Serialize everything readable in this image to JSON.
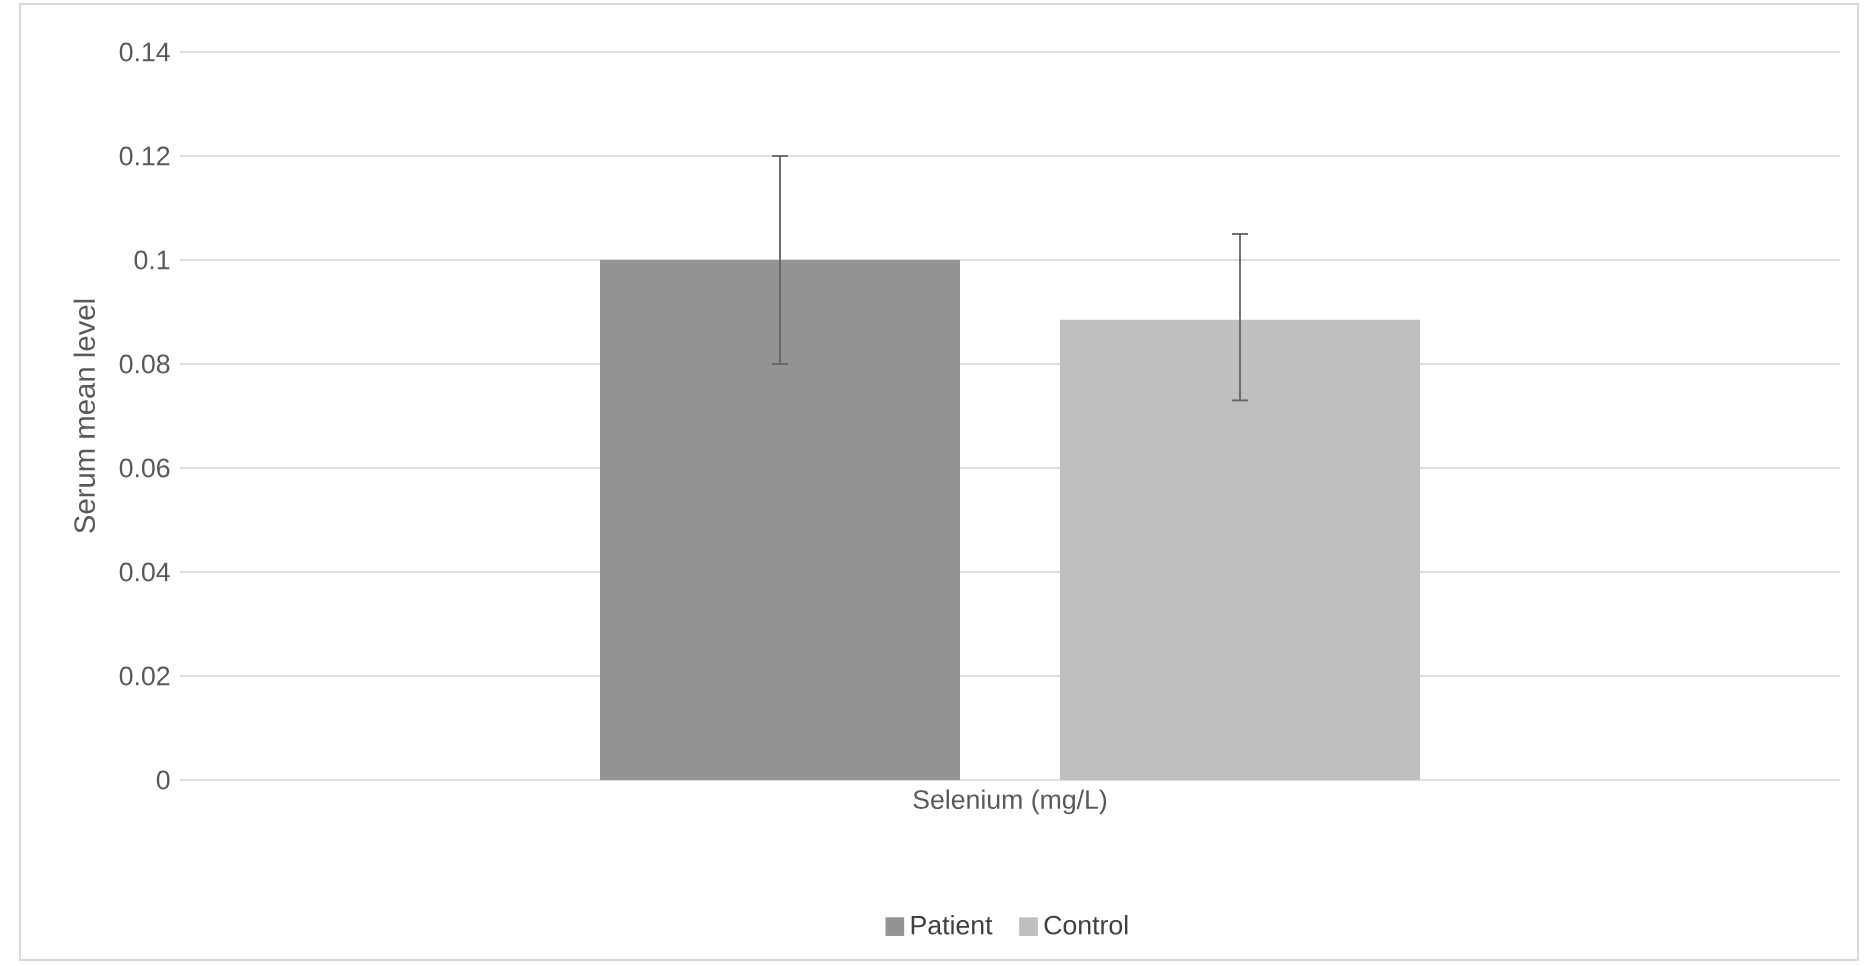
{
  "chart_data": {
    "type": "bar",
    "ylabel": "Serum mean level",
    "categories": [
      "Selenium (mg/L)"
    ],
    "series": [
      {
        "name": "Patient",
        "color": "#939393",
        "values": [
          0.1
        ],
        "errors": [
          0.02
        ]
      },
      {
        "name": "Control",
        "color": "#bfbfbf",
        "values": [
          0.0885
        ],
        "errors": [
          [
            0.073,
            0.105
          ]
        ]
      }
    ],
    "ylim": [
      0,
      0.14
    ],
    "yticks": [
      0,
      0.02,
      0.04,
      0.06,
      0.08,
      0.1,
      0.12,
      0.14
    ],
    "grid": "y",
    "legend": "bottom"
  }
}
